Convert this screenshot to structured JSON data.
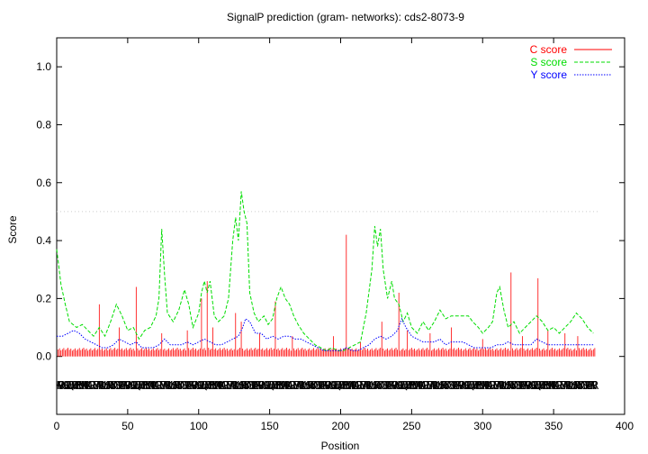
{
  "chart_data": {
    "type": "line",
    "title": "SignalP prediction (gram- networks): cds2-8073-9",
    "xlabel": "Position",
    "ylabel": "Score",
    "xlim": [
      0,
      400
    ],
    "ylim": [
      -0.2,
      1.1
    ],
    "x_ticks": [
      0,
      50,
      100,
      150,
      200,
      250,
      300,
      350,
      400
    ],
    "y_ticks": [
      0.0,
      0.2,
      0.4,
      0.6,
      0.8,
      1.0
    ],
    "x_tick_labels": [
      "0",
      "50",
      "100",
      "150",
      "200",
      "250",
      "300",
      "350",
      "400"
    ],
    "y_tick_labels": [
      "0.0",
      "0.2",
      "0.4",
      "0.6",
      "0.8",
      "1.0"
    ],
    "threshold": 0.5,
    "legend_position": "top-right",
    "grid": false,
    "sequence_length": 379,
    "sequence_row_y": -0.1,
    "series": [
      {
        "name": "C score",
        "color": "#ff0000",
        "style": "impulses",
        "baseline": 0.02,
        "peaks": [
          [
            30,
            0.18
          ],
          [
            44,
            0.1
          ],
          [
            56,
            0.24
          ],
          [
            74,
            0.08
          ],
          [
            92,
            0.09
          ],
          [
            102,
            0.2
          ],
          [
            106,
            0.26
          ],
          [
            110,
            0.1
          ],
          [
            126,
            0.15
          ],
          [
            130,
            0.12
          ],
          [
            143,
            0.08
          ],
          [
            154,
            0.19
          ],
          [
            166,
            0.07
          ],
          [
            195,
            0.07
          ],
          [
            204,
            0.42
          ],
          [
            214,
            0.05
          ],
          [
            229,
            0.12
          ],
          [
            241,
            0.22
          ],
          [
            247,
            0.09
          ],
          [
            263,
            0.08
          ],
          [
            278,
            0.1
          ],
          [
            300,
            0.06
          ],
          [
            320,
            0.29
          ],
          [
            328,
            0.07
          ],
          [
            339,
            0.27
          ],
          [
            346,
            0.09
          ],
          [
            358,
            0.08
          ],
          [
            367,
            0.07
          ]
        ]
      },
      {
        "name": "S score",
        "color": "#00dd00",
        "style": "dashed",
        "points": [
          [
            0,
            0.37
          ],
          [
            3,
            0.25
          ],
          [
            6,
            0.18
          ],
          [
            9,
            0.12
          ],
          [
            14,
            0.1
          ],
          [
            18,
            0.11
          ],
          [
            22,
            0.09
          ],
          [
            26,
            0.07
          ],
          [
            30,
            0.1
          ],
          [
            34,
            0.07
          ],
          [
            38,
            0.12
          ],
          [
            42,
            0.18
          ],
          [
            46,
            0.14
          ],
          [
            50,
            0.09
          ],
          [
            54,
            0.1
          ],
          [
            58,
            0.06
          ],
          [
            62,
            0.09
          ],
          [
            66,
            0.1
          ],
          [
            70,
            0.14
          ],
          [
            72,
            0.2
          ],
          [
            74,
            0.44
          ],
          [
            76,
            0.28
          ],
          [
            78,
            0.15
          ],
          [
            82,
            0.12
          ],
          [
            86,
            0.16
          ],
          [
            90,
            0.23
          ],
          [
            93,
            0.18
          ],
          [
            96,
            0.1
          ],
          [
            100,
            0.15
          ],
          [
            102,
            0.22
          ],
          [
            104,
            0.26
          ],
          [
            106,
            0.22
          ],
          [
            108,
            0.26
          ],
          [
            111,
            0.14
          ],
          [
            114,
            0.12
          ],
          [
            118,
            0.14
          ],
          [
            121,
            0.2
          ],
          [
            124,
            0.4
          ],
          [
            126,
            0.48
          ],
          [
            128,
            0.4
          ],
          [
            130,
            0.57
          ],
          [
            132,
            0.5
          ],
          [
            134,
            0.46
          ],
          [
            136,
            0.22
          ],
          [
            139,
            0.15
          ],
          [
            142,
            0.12
          ],
          [
            146,
            0.14
          ],
          [
            149,
            0.11
          ],
          [
            152,
            0.13
          ],
          [
            155,
            0.2
          ],
          [
            158,
            0.24
          ],
          [
            161,
            0.2
          ],
          [
            164,
            0.18
          ],
          [
            167,
            0.14
          ],
          [
            170,
            0.11
          ],
          [
            174,
            0.08
          ],
          [
            178,
            0.06
          ],
          [
            182,
            0.04
          ],
          [
            186,
            0.03
          ],
          [
            190,
            0.02
          ],
          [
            194,
            0.03
          ],
          [
            198,
            0.02
          ],
          [
            202,
            0.02
          ],
          [
            206,
            0.03
          ],
          [
            210,
            0.04
          ],
          [
            214,
            0.05
          ],
          [
            218,
            0.15
          ],
          [
            222,
            0.3
          ],
          [
            224,
            0.45
          ],
          [
            226,
            0.38
          ],
          [
            228,
            0.44
          ],
          [
            230,
            0.3
          ],
          [
            233,
            0.2
          ],
          [
            236,
            0.26
          ],
          [
            238,
            0.2
          ],
          [
            241,
            0.18
          ],
          [
            244,
            0.12
          ],
          [
            247,
            0.15
          ],
          [
            250,
            0.1
          ],
          [
            254,
            0.08
          ],
          [
            258,
            0.12
          ],
          [
            262,
            0.09
          ],
          [
            266,
            0.12
          ],
          [
            270,
            0.16
          ],
          [
            274,
            0.13
          ],
          [
            278,
            0.14
          ],
          [
            285,
            0.14
          ],
          [
            290,
            0.14
          ],
          [
            293,
            0.12
          ],
          [
            297,
            0.1
          ],
          [
            300,
            0.08
          ],
          [
            304,
            0.1
          ],
          [
            307,
            0.12
          ],
          [
            310,
            0.22
          ],
          [
            312,
            0.24
          ],
          [
            315,
            0.16
          ],
          [
            318,
            0.1
          ],
          [
            322,
            0.12
          ],
          [
            326,
            0.08
          ],
          [
            330,
            0.1
          ],
          [
            334,
            0.12
          ],
          [
            338,
            0.14
          ],
          [
            342,
            0.12
          ],
          [
            346,
            0.09
          ],
          [
            350,
            0.1
          ],
          [
            354,
            0.08
          ],
          [
            358,
            0.1
          ],
          [
            362,
            0.12
          ],
          [
            366,
            0.15
          ],
          [
            370,
            0.13
          ],
          [
            374,
            0.1
          ],
          [
            378,
            0.08
          ]
        ]
      },
      {
        "name": "Y score",
        "color": "#0000ff",
        "style": "dotted",
        "points": [
          [
            0,
            0.07
          ],
          [
            4,
            0.07
          ],
          [
            8,
            0.08
          ],
          [
            12,
            0.09
          ],
          [
            16,
            0.08
          ],
          [
            20,
            0.06
          ],
          [
            24,
            0.05
          ],
          [
            28,
            0.04
          ],
          [
            32,
            0.03
          ],
          [
            36,
            0.03
          ],
          [
            40,
            0.04
          ],
          [
            44,
            0.06
          ],
          [
            48,
            0.05
          ],
          [
            52,
            0.04
          ],
          [
            56,
            0.05
          ],
          [
            60,
            0.03
          ],
          [
            64,
            0.03
          ],
          [
            68,
            0.03
          ],
          [
            72,
            0.04
          ],
          [
            76,
            0.06
          ],
          [
            80,
            0.04
          ],
          [
            84,
            0.04
          ],
          [
            88,
            0.04
          ],
          [
            92,
            0.05
          ],
          [
            96,
            0.04
          ],
          [
            100,
            0.05
          ],
          [
            104,
            0.06
          ],
          [
            108,
            0.05
          ],
          [
            112,
            0.04
          ],
          [
            116,
            0.04
          ],
          [
            120,
            0.05
          ],
          [
            124,
            0.06
          ],
          [
            128,
            0.07
          ],
          [
            131,
            0.1
          ],
          [
            133,
            0.13
          ],
          [
            136,
            0.12
          ],
          [
            140,
            0.08
          ],
          [
            144,
            0.08
          ],
          [
            148,
            0.06
          ],
          [
            152,
            0.07
          ],
          [
            156,
            0.06
          ],
          [
            160,
            0.07
          ],
          [
            164,
            0.07
          ],
          [
            168,
            0.06
          ],
          [
            172,
            0.06
          ],
          [
            176,
            0.05
          ],
          [
            180,
            0.04
          ],
          [
            184,
            0.03
          ],
          [
            188,
            0.02
          ],
          [
            192,
            0.02
          ],
          [
            196,
            0.02
          ],
          [
            200,
            0.02
          ],
          [
            204,
            0.03
          ],
          [
            208,
            0.02
          ],
          [
            212,
            0.02
          ],
          [
            216,
            0.03
          ],
          [
            220,
            0.04
          ],
          [
            224,
            0.06
          ],
          [
            228,
            0.07
          ],
          [
            232,
            0.06
          ],
          [
            236,
            0.07
          ],
          [
            240,
            0.09
          ],
          [
            243,
            0.13
          ],
          [
            246,
            0.1
          ],
          [
            250,
            0.07
          ],
          [
            254,
            0.06
          ],
          [
            258,
            0.05
          ],
          [
            262,
            0.05
          ],
          [
            266,
            0.05
          ],
          [
            270,
            0.06
          ],
          [
            274,
            0.04
          ],
          [
            278,
            0.05
          ],
          [
            282,
            0.05
          ],
          [
            286,
            0.05
          ],
          [
            290,
            0.04
          ],
          [
            294,
            0.03
          ],
          [
            298,
            0.03
          ],
          [
            302,
            0.03
          ],
          [
            306,
            0.03
          ],
          [
            310,
            0.04
          ],
          [
            314,
            0.04
          ],
          [
            318,
            0.05
          ],
          [
            322,
            0.04
          ],
          [
            326,
            0.04
          ],
          [
            330,
            0.04
          ],
          [
            334,
            0.04
          ],
          [
            338,
            0.06
          ],
          [
            342,
            0.05
          ],
          [
            346,
            0.04
          ],
          [
            350,
            0.04
          ],
          [
            354,
            0.04
          ],
          [
            358,
            0.04
          ],
          [
            362,
            0.04
          ],
          [
            366,
            0.04
          ],
          [
            370,
            0.04
          ],
          [
            374,
            0.04
          ],
          [
            378,
            0.04
          ]
        ]
      }
    ]
  }
}
